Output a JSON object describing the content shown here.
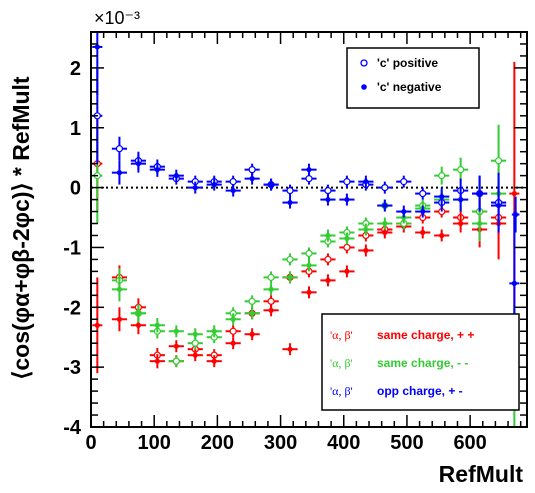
{
  "chart_data": {
    "type": "scatter",
    "title": "",
    "xlabel": "RefMult",
    "ylabel": "⟨cos(φα+φβ-2φc)⟩ * RefMult",
    "y_multiplier": "×10⁻³",
    "xlim": [
      0,
      690
    ],
    "ylim": [
      -4,
      2.6
    ],
    "x_ticks": [
      "0",
      "100",
      "200",
      "300",
      "400",
      "500",
      "600"
    ],
    "y_ticks": [
      "2",
      "1",
      "0",
      "-1",
      "-2",
      "-3",
      "-4"
    ],
    "reference_line": 0,
    "legend_top": {
      "position": "top-right",
      "entries": [
        {
          "label": "'c' positive",
          "marker": "open-circle",
          "color": "#0000ff"
        },
        {
          "label": "'c' negative",
          "marker": "filled-star",
          "color": "#0000ff"
        }
      ]
    },
    "legend_bottom": {
      "position": "bottom-right",
      "entries": [
        {
          "label": "'α, β'",
          "text": "same charge, + +",
          "color": "#ff0000"
        },
        {
          "label": "'α, β'",
          "text": "same charge, - -",
          "color": "#33cc33"
        },
        {
          "label": "'α, β'",
          "text": "opp charge, + -",
          "color": "#0000ff"
        }
      ]
    },
    "series": [
      {
        "marker": "open-circle",
        "color": "#ff0000",
        "points": [
          {
            "x": 10,
            "y": 0.4,
            "ex": 8,
            "ey": 0.8
          },
          {
            "x": 45,
            "y": -1.5,
            "ex": 12,
            "ey": 0.2
          },
          {
            "x": 75,
            "y": -2.0,
            "ex": 12,
            "ey": 0.15
          },
          {
            "x": 105,
            "y": -2.8,
            "ex": 12,
            "ey": 0.12
          },
          {
            "x": 135,
            "y": -2.9,
            "ex": 12,
            "ey": 0.1
          },
          {
            "x": 165,
            "y": -2.7,
            "ex": 12,
            "ey": 0.1
          },
          {
            "x": 195,
            "y": -2.8,
            "ex": 12,
            "ey": 0.1
          },
          {
            "x": 225,
            "y": -2.4,
            "ex": 12,
            "ey": 0.1
          },
          {
            "x": 255,
            "y": -2.1,
            "ex": 12,
            "ey": 0.1
          },
          {
            "x": 285,
            "y": -1.9,
            "ex": 12,
            "ey": 0.1
          },
          {
            "x": 315,
            "y": -1.5,
            "ex": 12,
            "ey": 0.1
          },
          {
            "x": 345,
            "y": -1.4,
            "ex": 12,
            "ey": 0.1
          },
          {
            "x": 375,
            "y": -1.2,
            "ex": 12,
            "ey": 0.1
          },
          {
            "x": 405,
            "y": -1.0,
            "ex": 12,
            "ey": 0.1
          },
          {
            "x": 435,
            "y": -0.8,
            "ex": 12,
            "ey": 0.1
          },
          {
            "x": 465,
            "y": -0.7,
            "ex": 12,
            "ey": 0.1
          },
          {
            "x": 495,
            "y": -0.6,
            "ex": 12,
            "ey": 0.1
          },
          {
            "x": 525,
            "y": -0.5,
            "ex": 12,
            "ey": 0.1
          },
          {
            "x": 555,
            "y": -0.4,
            "ex": 12,
            "ey": 0.1
          },
          {
            "x": 585,
            "y": -0.5,
            "ex": 12,
            "ey": 0.15
          },
          {
            "x": 615,
            "y": -0.4,
            "ex": 12,
            "ey": 0.2
          },
          {
            "x": 645,
            "y": -0.5,
            "ex": 12,
            "ey": 0.3
          }
        ]
      },
      {
        "marker": "filled-star",
        "color": "#ff0000",
        "points": [
          {
            "x": 10,
            "y": -2.3,
            "ex": 8,
            "ey": 0.8
          },
          {
            "x": 45,
            "y": -2.2,
            "ex": 12,
            "ey": 0.2
          },
          {
            "x": 75,
            "y": -2.3,
            "ex": 12,
            "ey": 0.15
          },
          {
            "x": 105,
            "y": -2.9,
            "ex": 12,
            "ey": 0.12
          },
          {
            "x": 135,
            "y": -2.65,
            "ex": 12,
            "ey": 0.1
          },
          {
            "x": 165,
            "y": -2.8,
            "ex": 12,
            "ey": 0.1
          },
          {
            "x": 195,
            "y": -2.9,
            "ex": 12,
            "ey": 0.1
          },
          {
            "x": 225,
            "y": -2.6,
            "ex": 12,
            "ey": 0.1
          },
          {
            "x": 255,
            "y": -2.45,
            "ex": 12,
            "ey": 0.1
          },
          {
            "x": 285,
            "y": -2.05,
            "ex": 12,
            "ey": 0.1
          },
          {
            "x": 315,
            "y": -2.7,
            "ex": 12,
            "ey": 0.1
          },
          {
            "x": 345,
            "y": -1.75,
            "ex": 12,
            "ey": 0.1
          },
          {
            "x": 375,
            "y": -1.55,
            "ex": 12,
            "ey": 0.1
          },
          {
            "x": 405,
            "y": -1.4,
            "ex": 12,
            "ey": 0.1
          },
          {
            "x": 435,
            "y": -1.05,
            "ex": 12,
            "ey": 0.1
          },
          {
            "x": 465,
            "y": -0.75,
            "ex": 12,
            "ey": 0.1
          },
          {
            "x": 495,
            "y": -0.65,
            "ex": 12,
            "ey": 0.1
          },
          {
            "x": 525,
            "y": -0.75,
            "ex": 12,
            "ey": 0.1
          },
          {
            "x": 555,
            "y": -0.8,
            "ex": 12,
            "ey": 0.1
          },
          {
            "x": 585,
            "y": -0.6,
            "ex": 12,
            "ey": 0.15
          },
          {
            "x": 615,
            "y": -0.7,
            "ex": 12,
            "ey": 0.3
          },
          {
            "x": 645,
            "y": -0.6,
            "ex": 12,
            "ey": 0.6
          },
          {
            "x": 670,
            "y": -0.1,
            "ex": 8,
            "ey": 2.2
          }
        ]
      },
      {
        "marker": "open-circle",
        "color": "#33cc33",
        "points": [
          {
            "x": 10,
            "y": 0.2,
            "ex": 8,
            "ey": 0.8
          },
          {
            "x": 45,
            "y": -1.55,
            "ex": 12,
            "ey": 0.2
          },
          {
            "x": 75,
            "y": -2.1,
            "ex": 12,
            "ey": 0.15
          },
          {
            "x": 105,
            "y": -2.4,
            "ex": 12,
            "ey": 0.12
          },
          {
            "x": 135,
            "y": -2.9,
            "ex": 12,
            "ey": 0.1
          },
          {
            "x": 165,
            "y": -2.6,
            "ex": 12,
            "ey": 0.1
          },
          {
            "x": 195,
            "y": -2.5,
            "ex": 12,
            "ey": 0.1
          },
          {
            "x": 225,
            "y": -2.1,
            "ex": 12,
            "ey": 0.1
          },
          {
            "x": 255,
            "y": -1.9,
            "ex": 12,
            "ey": 0.1
          },
          {
            "x": 285,
            "y": -1.5,
            "ex": 12,
            "ey": 0.1
          },
          {
            "x": 315,
            "y": -1.2,
            "ex": 12,
            "ey": 0.1
          },
          {
            "x": 345,
            "y": -1.1,
            "ex": 12,
            "ey": 0.1
          },
          {
            "x": 375,
            "y": -0.9,
            "ex": 12,
            "ey": 0.1
          },
          {
            "x": 405,
            "y": -0.75,
            "ex": 12,
            "ey": 0.1
          },
          {
            "x": 435,
            "y": -0.6,
            "ex": 12,
            "ey": 0.1
          },
          {
            "x": 465,
            "y": -0.3,
            "ex": 12,
            "ey": 0.1
          },
          {
            "x": 495,
            "y": -0.6,
            "ex": 12,
            "ey": 0.1
          },
          {
            "x": 525,
            "y": -0.3,
            "ex": 12,
            "ey": 0.1
          },
          {
            "x": 555,
            "y": 0.2,
            "ex": 12,
            "ey": 0.15
          },
          {
            "x": 585,
            "y": 0.3,
            "ex": 12,
            "ey": 0.2
          },
          {
            "x": 615,
            "y": -0.4,
            "ex": 12,
            "ey": 0.3
          },
          {
            "x": 645,
            "y": 0.45,
            "ex": 12,
            "ey": 0.6
          }
        ]
      },
      {
        "marker": "filled-star",
        "color": "#33cc33",
        "points": [
          {
            "x": 45,
            "y": -1.7,
            "ex": 12,
            "ey": 0.2
          },
          {
            "x": 75,
            "y": -2.1,
            "ex": 12,
            "ey": 0.15
          },
          {
            "x": 105,
            "y": -2.3,
            "ex": 12,
            "ey": 0.12
          },
          {
            "x": 135,
            "y": -2.4,
            "ex": 12,
            "ey": 0.1
          },
          {
            "x": 165,
            "y": -2.45,
            "ex": 12,
            "ey": 0.1
          },
          {
            "x": 195,
            "y": -2.4,
            "ex": 12,
            "ey": 0.1
          },
          {
            "x": 225,
            "y": -2.2,
            "ex": 12,
            "ey": 0.1
          },
          {
            "x": 255,
            "y": -2.1,
            "ex": 12,
            "ey": 0.1
          },
          {
            "x": 285,
            "y": -1.7,
            "ex": 12,
            "ey": 0.1
          },
          {
            "x": 315,
            "y": -1.5,
            "ex": 12,
            "ey": 0.1
          },
          {
            "x": 345,
            "y": -1.3,
            "ex": 12,
            "ey": 0.1
          },
          {
            "x": 375,
            "y": -0.8,
            "ex": 12,
            "ey": 0.1
          },
          {
            "x": 405,
            "y": -0.85,
            "ex": 12,
            "ey": 0.1
          },
          {
            "x": 435,
            "y": -0.7,
            "ex": 12,
            "ey": 0.1
          },
          {
            "x": 465,
            "y": -0.6,
            "ex": 12,
            "ey": 0.1
          },
          {
            "x": 495,
            "y": -0.5,
            "ex": 12,
            "ey": 0.1
          },
          {
            "x": 525,
            "y": -0.35,
            "ex": 12,
            "ey": 0.1
          },
          {
            "x": 555,
            "y": -0.2,
            "ex": 12,
            "ey": 0.15
          },
          {
            "x": 585,
            "y": -0.2,
            "ex": 12,
            "ey": 0.2
          },
          {
            "x": 615,
            "y": -0.6,
            "ex": 12,
            "ey": 0.3
          },
          {
            "x": 645,
            "y": -0.1,
            "ex": 12,
            "ey": 0.5
          },
          {
            "x": 670,
            "y": -3.0,
            "ex": 8,
            "ey": 1.0
          }
        ]
      },
      {
        "marker": "open-circle",
        "color": "#0000ff",
        "points": [
          {
            "x": 10,
            "y": 1.2,
            "ex": 8,
            "ey": 0.8
          },
          {
            "x": 45,
            "y": 0.65,
            "ex": 12,
            "ey": 0.2
          },
          {
            "x": 75,
            "y": 0.45,
            "ex": 12,
            "ey": 0.15
          },
          {
            "x": 105,
            "y": 0.35,
            "ex": 12,
            "ey": 0.12
          },
          {
            "x": 135,
            "y": 0.15,
            "ex": 12,
            "ey": 0.1
          },
          {
            "x": 165,
            "y": 0.1,
            "ex": 12,
            "ey": 0.1
          },
          {
            "x": 195,
            "y": 0.1,
            "ex": 12,
            "ey": 0.1
          },
          {
            "x": 225,
            "y": 0.1,
            "ex": 12,
            "ey": 0.1
          },
          {
            "x": 255,
            "y": 0.3,
            "ex": 12,
            "ey": 0.1
          },
          {
            "x": 285,
            "y": 0.05,
            "ex": 12,
            "ey": 0.1
          },
          {
            "x": 315,
            "y": -0.05,
            "ex": 12,
            "ey": 0.1
          },
          {
            "x": 345,
            "y": 0.15,
            "ex": 12,
            "ey": 0.1
          },
          {
            "x": 375,
            "y": -0.05,
            "ex": 12,
            "ey": 0.1
          },
          {
            "x": 405,
            "y": 0.1,
            "ex": 12,
            "ey": 0.1
          },
          {
            "x": 435,
            "y": 0.05,
            "ex": 12,
            "ey": 0.1
          },
          {
            "x": 465,
            "y": 0.0,
            "ex": 12,
            "ey": 0.1
          },
          {
            "x": 495,
            "y": 0.1,
            "ex": 12,
            "ey": 0.1
          },
          {
            "x": 525,
            "y": -0.1,
            "ex": 12,
            "ey": 0.1
          },
          {
            "x": 555,
            "y": -0.25,
            "ex": 12,
            "ey": 0.15
          },
          {
            "x": 585,
            "y": -0.05,
            "ex": 12,
            "ey": 0.2
          },
          {
            "x": 615,
            "y": -0.1,
            "ex": 12,
            "ey": 0.3
          },
          {
            "x": 645,
            "y": -0.25,
            "ex": 12,
            "ey": 0.5
          }
        ]
      },
      {
        "marker": "filled-star",
        "color": "#0000ff",
        "points": [
          {
            "x": 10,
            "y": 2.35,
            "ex": 8,
            "ey": 0.8
          },
          {
            "x": 45,
            "y": 0.25,
            "ex": 12,
            "ey": 0.2
          },
          {
            "x": 75,
            "y": 0.4,
            "ex": 12,
            "ey": 0.15
          },
          {
            "x": 105,
            "y": 0.3,
            "ex": 12,
            "ey": 0.12
          },
          {
            "x": 135,
            "y": 0.2,
            "ex": 12,
            "ey": 0.1
          },
          {
            "x": 165,
            "y": 0.0,
            "ex": 12,
            "ey": 0.1
          },
          {
            "x": 195,
            "y": 0.05,
            "ex": 12,
            "ey": 0.1
          },
          {
            "x": 225,
            "y": -0.05,
            "ex": 12,
            "ey": 0.1
          },
          {
            "x": 255,
            "y": 0.15,
            "ex": 12,
            "ey": 0.1
          },
          {
            "x": 285,
            "y": 0.05,
            "ex": 12,
            "ey": 0.1
          },
          {
            "x": 315,
            "y": -0.25,
            "ex": 12,
            "ey": 0.1
          },
          {
            "x": 345,
            "y": 0.3,
            "ex": 12,
            "ey": 0.1
          },
          {
            "x": 375,
            "y": -0.2,
            "ex": 12,
            "ey": 0.1
          },
          {
            "x": 405,
            "y": -0.2,
            "ex": 12,
            "ey": 0.1
          },
          {
            "x": 435,
            "y": 0.1,
            "ex": 12,
            "ey": 0.1
          },
          {
            "x": 465,
            "y": -0.3,
            "ex": 12,
            "ey": 0.1
          },
          {
            "x": 495,
            "y": -0.4,
            "ex": 12,
            "ey": 0.1
          },
          {
            "x": 525,
            "y": -0.4,
            "ex": 12,
            "ey": 0.1
          },
          {
            "x": 555,
            "y": -0.15,
            "ex": 12,
            "ey": 0.15
          },
          {
            "x": 585,
            "y": -0.2,
            "ex": 12,
            "ey": 0.2
          },
          {
            "x": 615,
            "y": -0.1,
            "ex": 12,
            "ey": 0.3
          },
          {
            "x": 645,
            "y": -0.3,
            "ex": 12,
            "ey": 0.4
          },
          {
            "x": 670,
            "y": -1.6,
            "ex": 8,
            "ey": 1.2
          },
          {
            "x": 672,
            "y": -0.45,
            "ex": 6,
            "ey": 0.3
          }
        ]
      }
    ]
  }
}
